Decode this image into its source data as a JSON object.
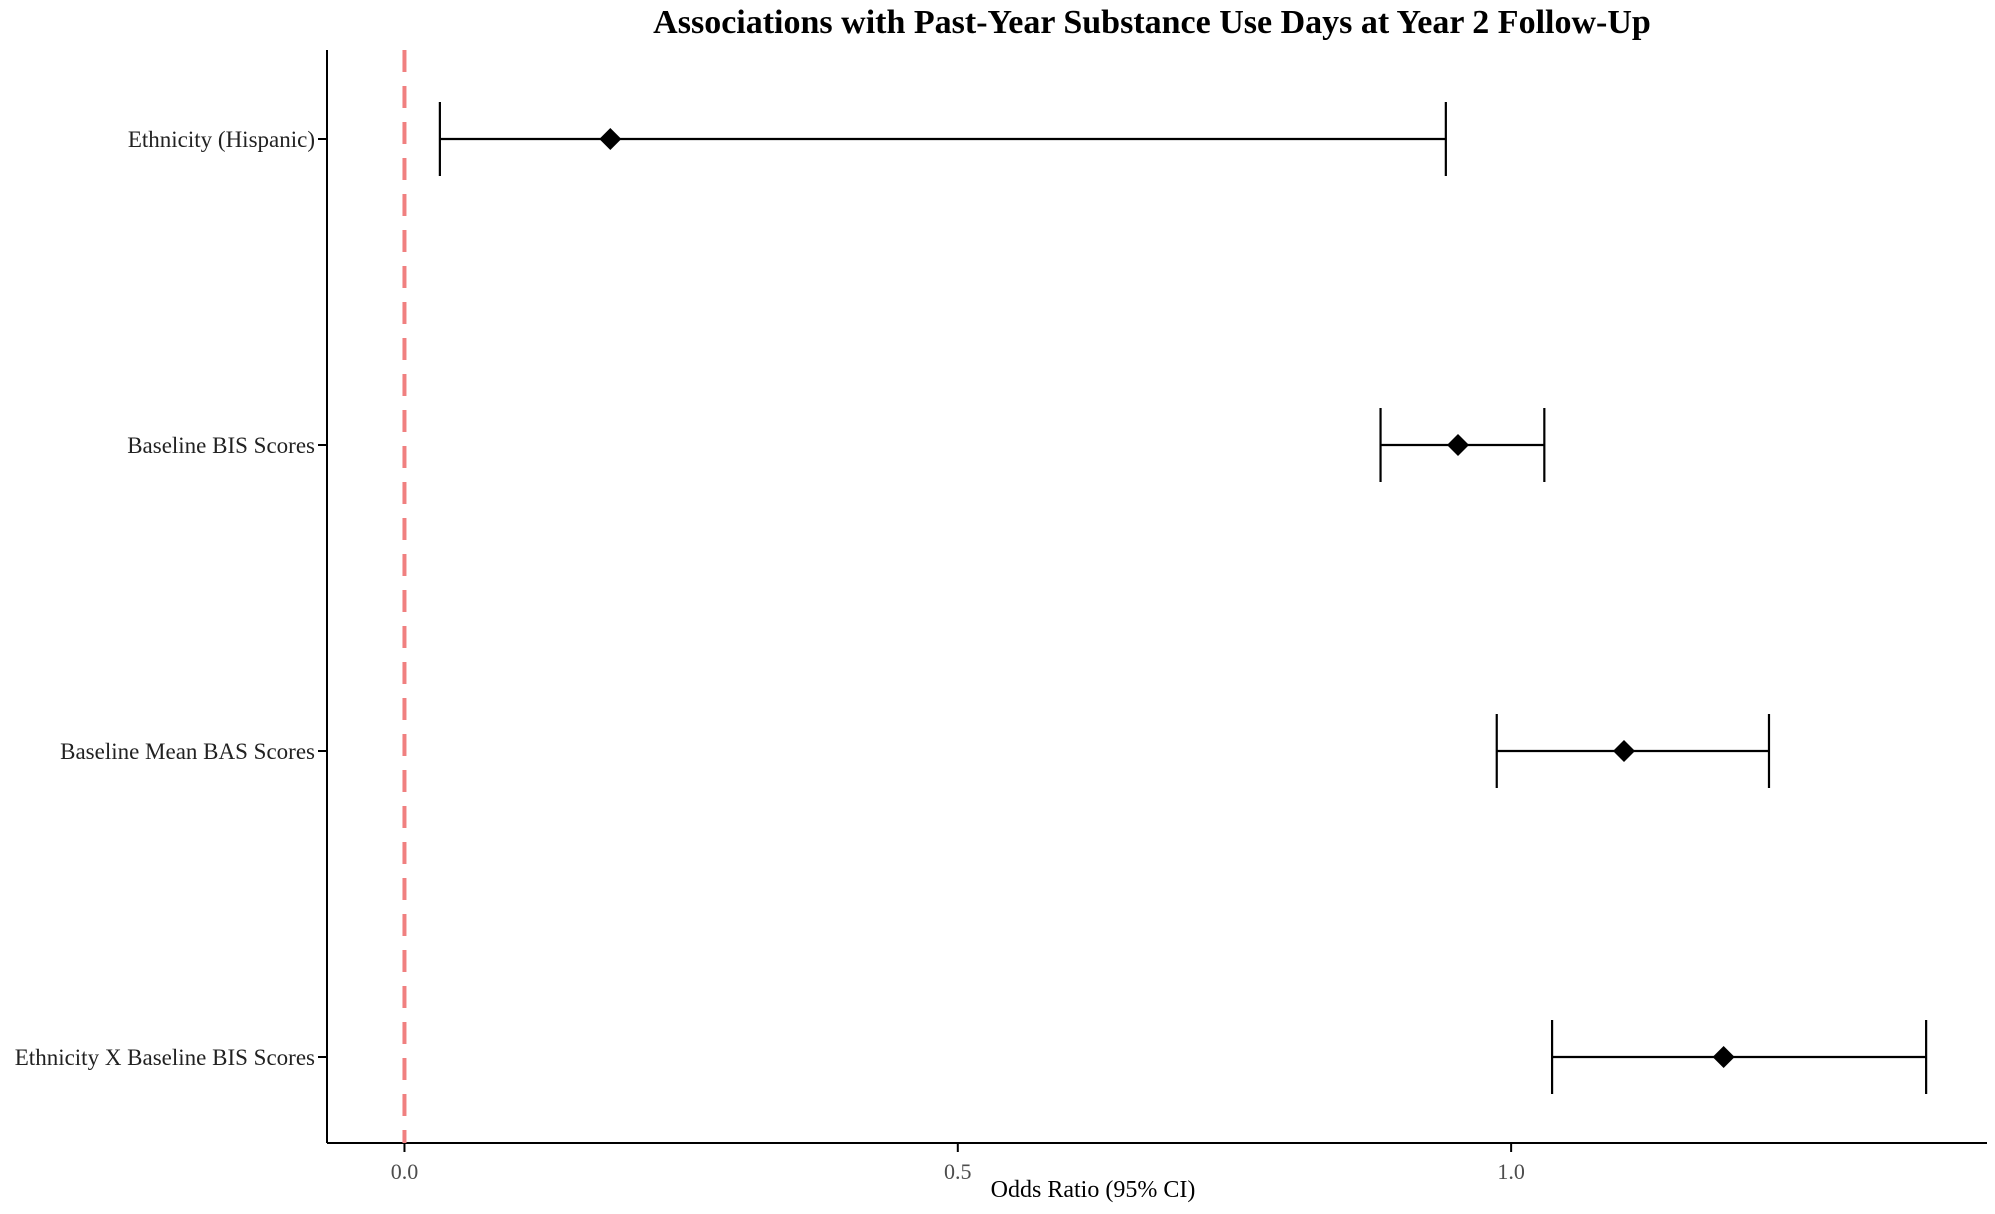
{
  "chart_data": {
    "type": "forest",
    "title": "Associations with Past-Year Substance Use Days at Year 2 Follow-Up",
    "xlabel": "Odds Ratio (95% CI)",
    "ylabel": "",
    "xlim": [
      -0.07,
      1.43
    ],
    "x_ticks": [
      0.0,
      0.5,
      1.0
    ],
    "x_tick_labels": [
      "0.0",
      "0.5",
      "1.0"
    ],
    "reference_line": {
      "x": 0.0,
      "style": "dashed",
      "color": "#f08080"
    },
    "categories": [
      "Ethnicity (Hispanic)",
      "Baseline BIS Scores",
      "Baseline Mean BAS Scores",
      "Ethnicity X Baseline BIS Scores"
    ],
    "estimates": [
      0.186,
      0.952,
      1.102,
      1.192
    ],
    "ci_lower": [
      0.032,
      0.882,
      0.987,
      1.037
    ],
    "ci_upper": [
      0.941,
      1.03,
      1.233,
      1.375
    ],
    "marker": "diamond",
    "marker_color": "#000000",
    "grid": false
  }
}
